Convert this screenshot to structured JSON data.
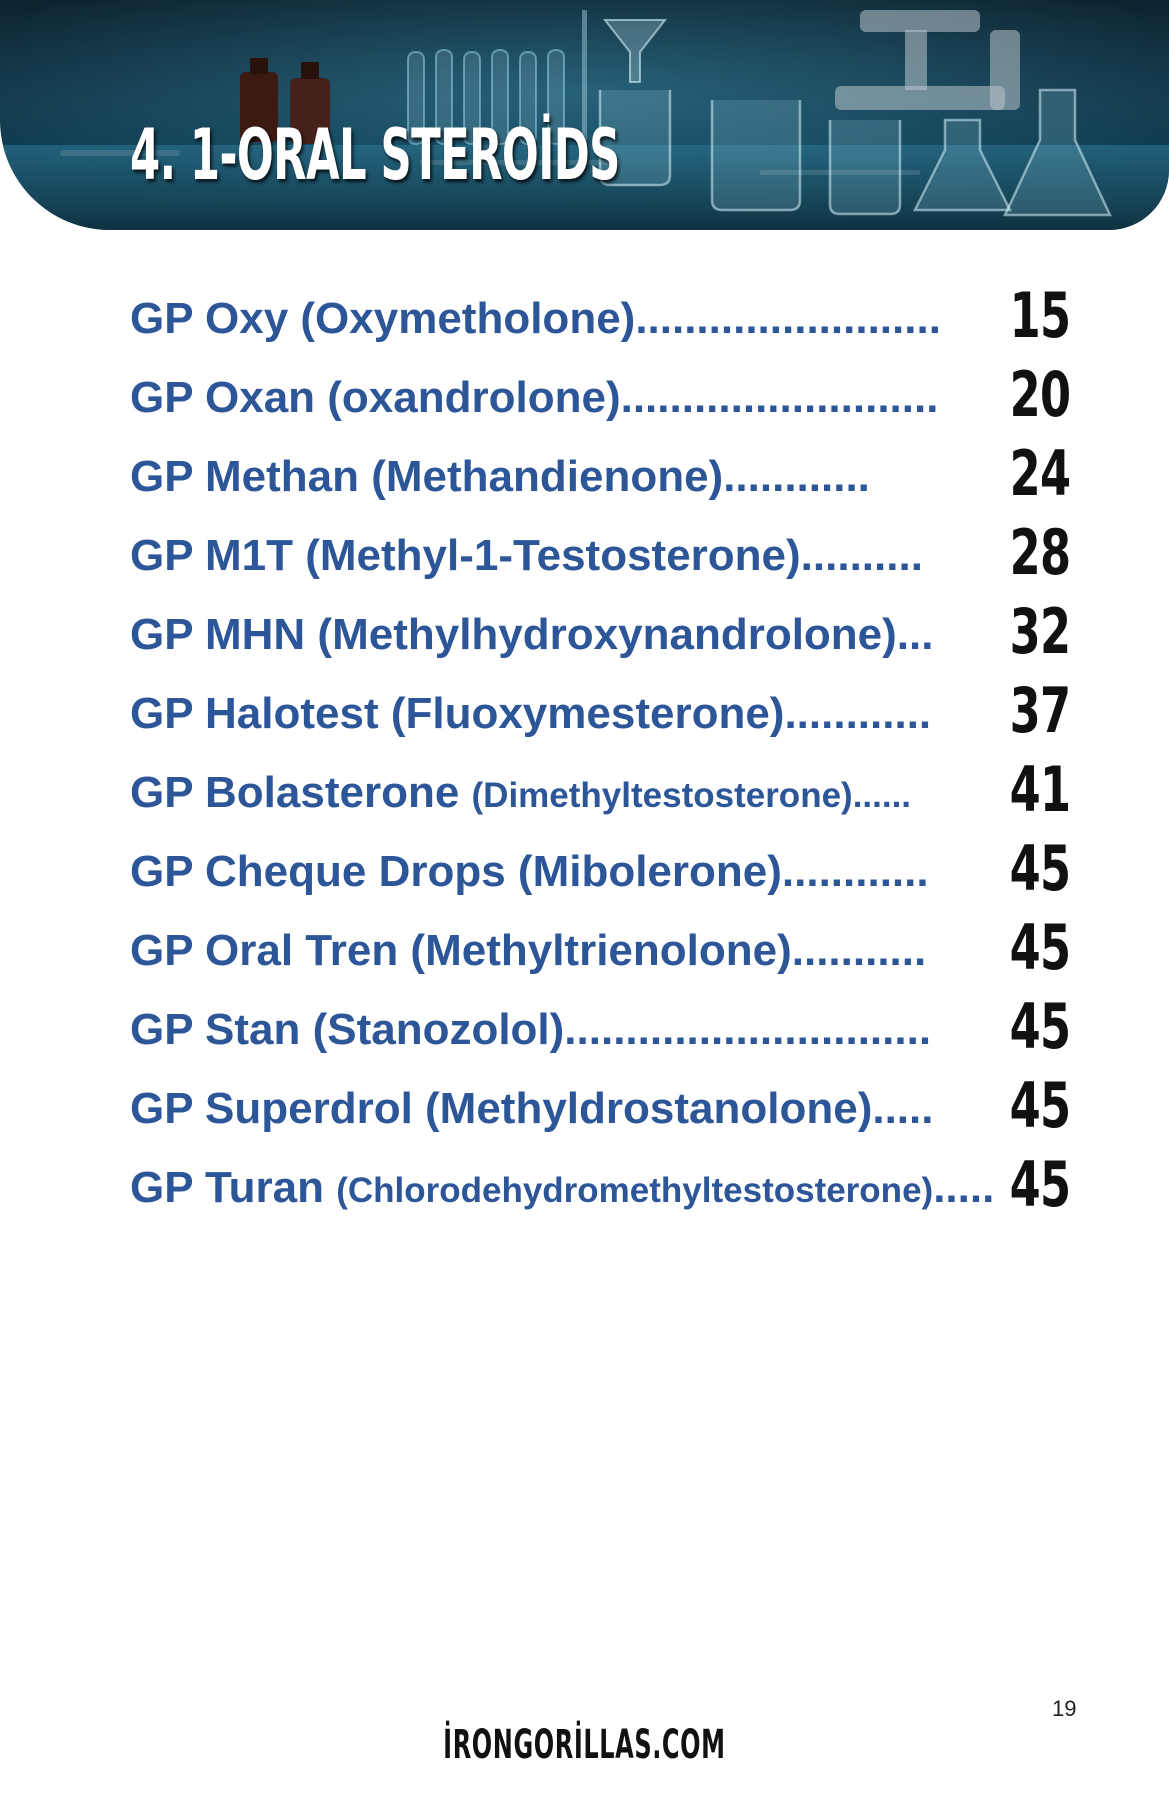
{
  "header": {
    "title": "4. 1-ORAL STEROİDS"
  },
  "toc": [
    {
      "name": "GP Oxy (Oxymetholone).........................",
      "sub": "",
      "tail": "",
      "page": "15"
    },
    {
      "name": "GP Oxan (oxandrolone)..........................",
      "sub": "",
      "tail": "",
      "page": "20"
    },
    {
      "name": "GP Methan (Methandienone)............",
      "sub": "",
      "tail": "",
      "page": "24"
    },
    {
      "name": "GP M1T (Methyl-1-Testosterone)..........",
      "sub": "",
      "tail": "",
      "page": "28"
    },
    {
      "name": "GP MHN (Methylhydroxynandrolone)...",
      "sub": "",
      "tail": "",
      "page": "32"
    },
    {
      "name": "GP Halotest (Fluoxymesterone)............",
      "sub": "",
      "tail": "",
      "page": "37"
    },
    {
      "name": "GP Bolasterone ",
      "sub": "(Dimethyltestosterone)......",
      "tail": "",
      "page": "41"
    },
    {
      "name": "GP Cheque Drops (Mibolerone)............",
      "sub": "",
      "tail": "",
      "page": "45"
    },
    {
      "name": "GP Oral Tren (Methyltrienolone)...........",
      "sub": "",
      "tail": "",
      "page": "45"
    },
    {
      "name": "GP Stan (Stanozolol)..............................",
      "sub": "",
      "tail": "",
      "page": "45"
    },
    {
      "name": "GP Superdrol (Methyldrostanolone).....",
      "sub": "",
      "tail": "",
      "page": "45"
    },
    {
      "name": "GP Turan ",
      "sub": "(Chlorodehydromethyltestosterone)",
      "tail": ".....",
      "page": "45"
    }
  ],
  "footer": {
    "page_number": "19",
    "website": "İRONGORİLLAS.COM"
  },
  "colors": {
    "entry_text": "#2d5699",
    "page_numbers": "#111111",
    "banner": "#123547"
  }
}
